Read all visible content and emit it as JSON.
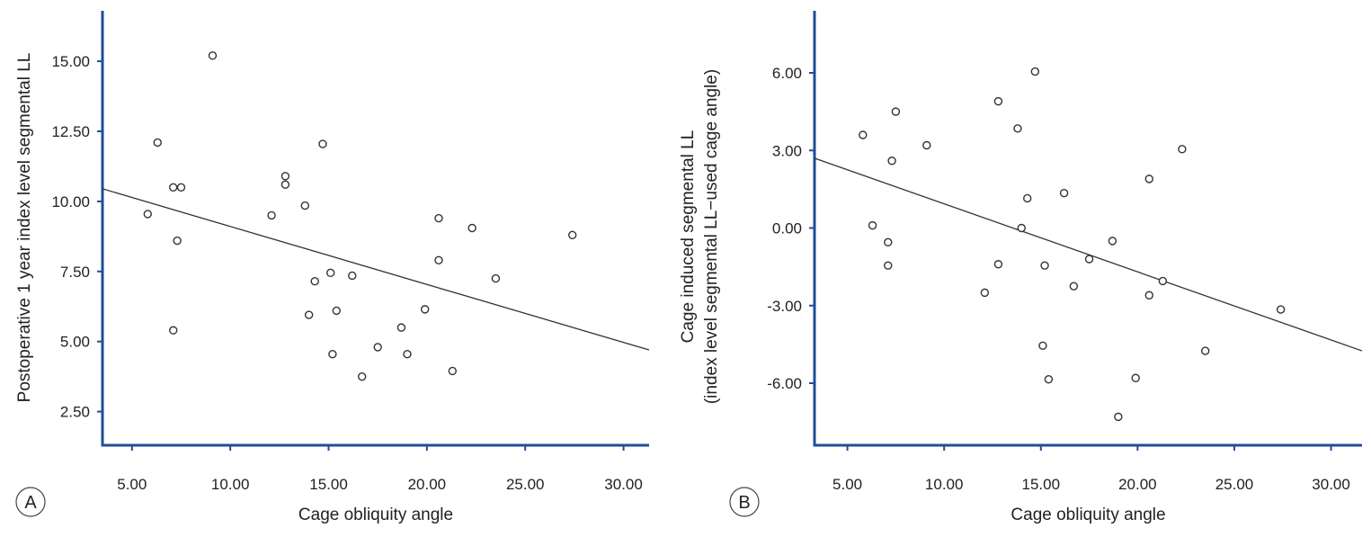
{
  "colors": {
    "axis": "#1f4e96",
    "marker": "#333333",
    "trend": "#333333",
    "text": "#222222"
  },
  "chart_data": [
    {
      "type": "scatter",
      "panel_label": "A",
      "title": "",
      "xlabel": "Cage obliquity angle",
      "ylabel": [
        "Postoperative 1 year index level segmental LL"
      ],
      "xlim": [
        3.5,
        31.3
      ],
      "ylim": [
        1.3,
        16.8
      ],
      "xticks": [
        5,
        10,
        15,
        20,
        25,
        30
      ],
      "xtick_labels": [
        "5.00",
        "10.00",
        "15.00",
        "20.00",
        "25.00",
        "30.00"
      ],
      "yticks": [
        2.5,
        5,
        7.5,
        10,
        12.5,
        15
      ],
      "ytick_labels": [
        "2.50",
        "5.00",
        "7.50",
        "10.00",
        "12.50",
        "15.00"
      ],
      "grid": false,
      "points": [
        {
          "x": 5.8,
          "y": 9.55
        },
        {
          "x": 6.3,
          "y": 12.1
        },
        {
          "x": 7.1,
          "y": 10.5
        },
        {
          "x": 7.5,
          "y": 10.5
        },
        {
          "x": 7.3,
          "y": 8.6
        },
        {
          "x": 7.1,
          "y": 5.4
        },
        {
          "x": 9.1,
          "y": 15.2
        },
        {
          "x": 12.1,
          "y": 9.5
        },
        {
          "x": 12.8,
          "y": 10.9
        },
        {
          "x": 12.8,
          "y": 10.6
        },
        {
          "x": 13.8,
          "y": 9.85
        },
        {
          "x": 14.7,
          "y": 12.05
        },
        {
          "x": 14.3,
          "y": 7.15
        },
        {
          "x": 15.1,
          "y": 7.45
        },
        {
          "x": 14.0,
          "y": 5.95
        },
        {
          "x": 15.4,
          "y": 6.1
        },
        {
          "x": 16.2,
          "y": 7.35
        },
        {
          "x": 15.2,
          "y": 4.55
        },
        {
          "x": 16.7,
          "y": 3.75
        },
        {
          "x": 17.5,
          "y": 4.8
        },
        {
          "x": 18.7,
          "y": 5.5
        },
        {
          "x": 19.0,
          "y": 4.55
        },
        {
          "x": 19.9,
          "y": 6.15
        },
        {
          "x": 20.6,
          "y": 9.4
        },
        {
          "x": 20.6,
          "y": 7.9
        },
        {
          "x": 21.3,
          "y": 3.95
        },
        {
          "x": 22.3,
          "y": 9.05
        },
        {
          "x": 23.5,
          "y": 7.25
        },
        {
          "x": 27.4,
          "y": 8.8
        }
      ],
      "trendline": {
        "x": [
          3.5,
          31.3
        ],
        "y": [
          10.45,
          4.7
        ]
      }
    },
    {
      "type": "scatter",
      "panel_label": "B",
      "title": "",
      "xlabel": "Cage obliquity angle",
      "ylabel": [
        "Cage induced segmental LL",
        "(index level segmental LL−used cage angle)"
      ],
      "xlim": [
        3.3,
        31.6
      ],
      "ylim": [
        -8.4,
        8.4
      ],
      "xticks": [
        5,
        10,
        15,
        20,
        25,
        30
      ],
      "xtick_labels": [
        "5.00",
        "10.00",
        "15.00",
        "20.00",
        "25.00",
        "30.00"
      ],
      "yticks": [
        -6,
        -3,
        0,
        3,
        6
      ],
      "ytick_labels": [
        "-6.00",
        "-3.00",
        "0.00",
        "3.00",
        "6.00"
      ],
      "grid": false,
      "points": [
        {
          "x": 5.8,
          "y": 3.6
        },
        {
          "x": 6.3,
          "y": 0.1
        },
        {
          "x": 7.1,
          "y": -0.55
        },
        {
          "x": 7.1,
          "y": -1.45
        },
        {
          "x": 7.3,
          "y": 2.6
        },
        {
          "x": 7.5,
          "y": 4.5
        },
        {
          "x": 9.1,
          "y": 3.2
        },
        {
          "x": 12.1,
          "y": -2.5
        },
        {
          "x": 12.8,
          "y": 4.9
        },
        {
          "x": 12.8,
          "y": -1.4
        },
        {
          "x": 13.8,
          "y": 3.85
        },
        {
          "x": 14.0,
          "y": 0.0
        },
        {
          "x": 14.3,
          "y": 1.15
        },
        {
          "x": 14.7,
          "y": 6.05
        },
        {
          "x": 15.1,
          "y": -4.55
        },
        {
          "x": 15.2,
          "y": -1.45
        },
        {
          "x": 15.4,
          "y": -5.85
        },
        {
          "x": 16.2,
          "y": 1.35
        },
        {
          "x": 16.7,
          "y": -2.25
        },
        {
          "x": 17.5,
          "y": -1.2
        },
        {
          "x": 18.7,
          "y": -0.5
        },
        {
          "x": 19.0,
          "y": -7.3
        },
        {
          "x": 19.9,
          "y": -5.8
        },
        {
          "x": 20.6,
          "y": -2.6
        },
        {
          "x": 20.6,
          "y": 1.9
        },
        {
          "x": 21.3,
          "y": -2.05
        },
        {
          "x": 22.3,
          "y": 3.05
        },
        {
          "x": 23.5,
          "y": -4.75
        },
        {
          "x": 27.4,
          "y": -3.15
        }
      ],
      "trendline": {
        "x": [
          3.3,
          31.6
        ],
        "y": [
          2.7,
          -4.75
        ]
      }
    }
  ]
}
